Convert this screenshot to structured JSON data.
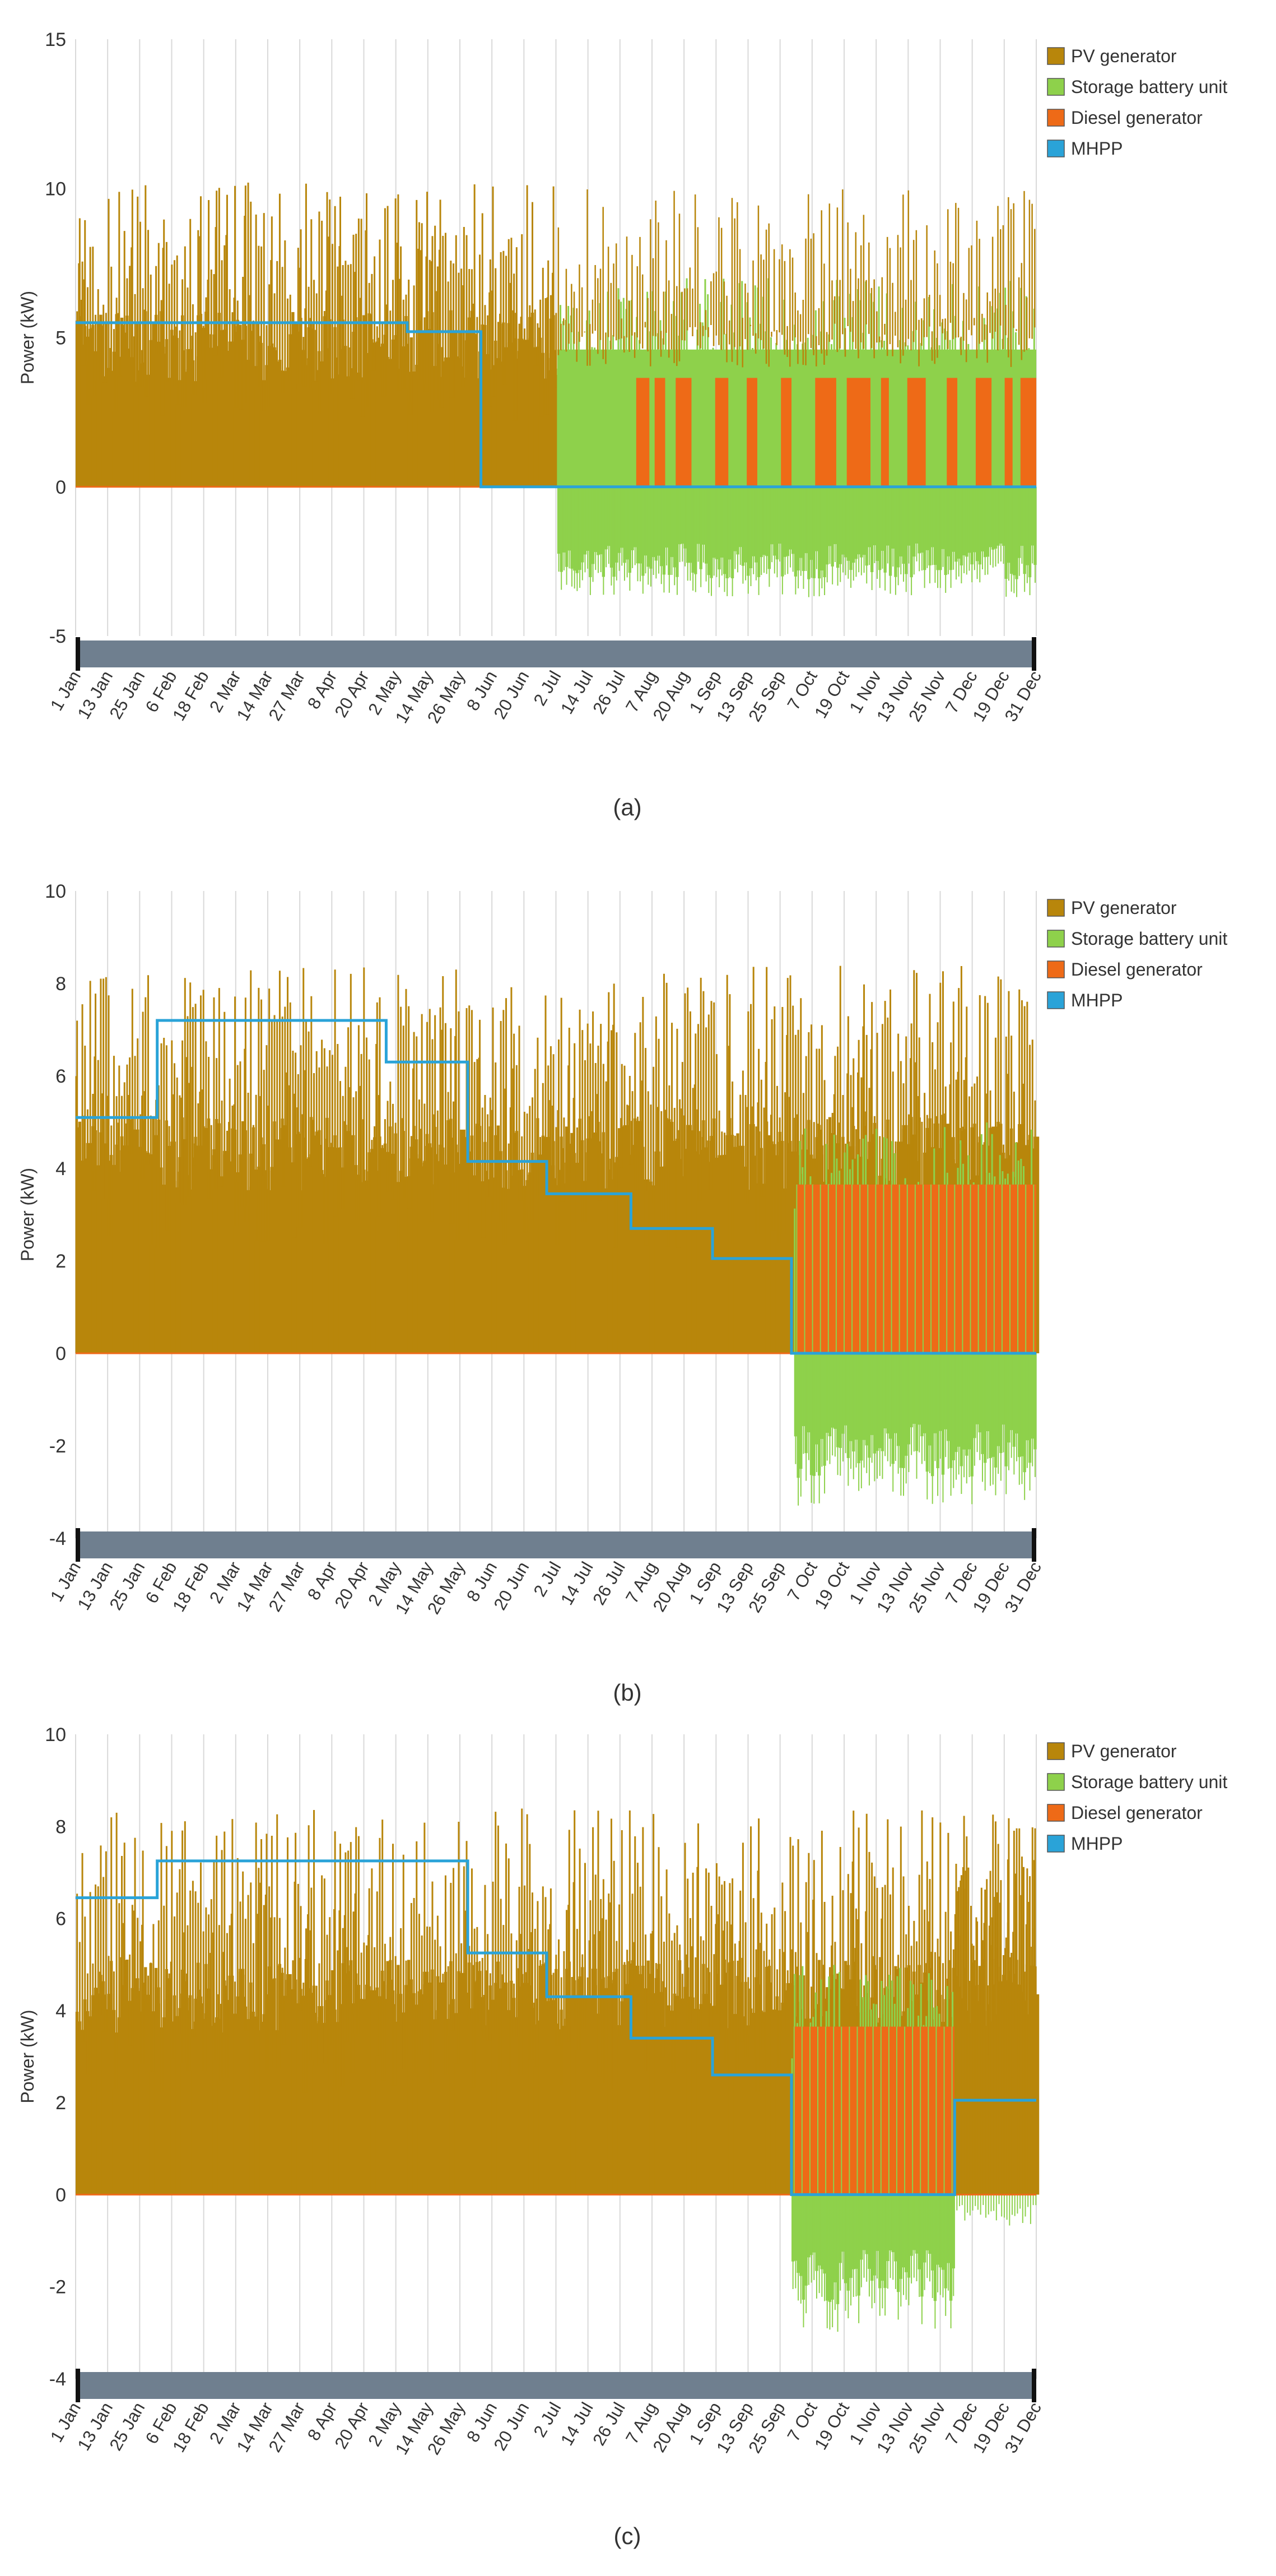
{
  "colors": {
    "pv": "#b8860b",
    "battery": "#8ed14b",
    "diesel": "#ee6a17",
    "mhpp": "#2aa3d8",
    "grid": "#d9d9d9",
    "scrollbar": "#6f7f8f"
  },
  "months": [
    "1 Jan",
    "13 Jan",
    "25 Jan",
    "6 Feb",
    "18 Feb",
    "2 Mar",
    "14 Mar",
    "27 Mar",
    "8 Apr",
    "20 Apr",
    "2 May",
    "14 May",
    "26 May",
    "8 Jun",
    "20 Jun",
    "2 Jul",
    "14 Jul",
    "26 Jul",
    "7 Aug",
    "20 Aug",
    "1 Sep",
    "13 Sep",
    "25 Sep",
    "7 Oct",
    "19 Oct",
    "1 Nov",
    "13 Nov",
    "25 Nov",
    "7 Dec",
    "19 Dec",
    "31 Dec"
  ],
  "chart_data": [
    {
      "type": "area",
      "caption": "(a)",
      "ylabel": "Power (kW)",
      "xlabel": "",
      "ylim": [
        -5,
        15
      ],
      "yticks": [
        "15",
        "10",
        "5",
        "0",
        "-5"
      ],
      "xticks": [
        "1 Jan",
        "13 Jan",
        "25 Jan",
        "6 Feb",
        "18 Feb",
        "2 Mar",
        "14 Mar",
        "27 Mar",
        "8 Apr",
        "20 Apr",
        "2 May",
        "14 May",
        "26 May",
        "8 Jun",
        "20 Jun",
        "2 Jul",
        "14 Jul",
        "26 Jul",
        "7 Aug",
        "20 Aug",
        "1 Sep",
        "13 Sep",
        "25 Sep",
        "7 Oct",
        "19 Oct",
        "1 Nov",
        "13 Nov",
        "25 Nov",
        "7 Dec",
        "19 Dec",
        "31 Dec"
      ],
      "legend": [
        "PV generator",
        "Storage battery unit",
        "Diesel generator",
        "MHPP"
      ],
      "series": [
        {
          "name": "PV generator",
          "day_start": 0,
          "day_end": 183,
          "daily_peak_range": [
            5.0,
            10.2
          ],
          "baseline_range": [
            1.0,
            2.5
          ]
        },
        {
          "name": "Storage battery unit",
          "day_start": 183,
          "day_end": 365,
          "charge_range": [
            -3.7,
            -1.0
          ],
          "discharge_max": 7.0
        },
        {
          "name": "Diesel generator",
          "value": 3.65,
          "day_start": 183,
          "day_end": 365
        },
        {
          "name": "MHPP",
          "steps": [
            [
              0,
              5.5
            ],
            [
              126,
              5.2
            ],
            [
              153,
              5.2
            ],
            [
              154,
              0.0
            ],
            [
              365,
              0.0
            ]
          ]
        }
      ]
    },
    {
      "type": "area",
      "caption": "(b)",
      "ylabel": "Power (kW)",
      "xlabel": "",
      "ylim": [
        -4,
        10
      ],
      "yticks": [
        "10",
        "8",
        "6",
        "4",
        "2",
        "0",
        "-2",
        "-4"
      ],
      "xticks": [
        "1 Jan",
        "13 Jan",
        "25 Jan",
        "6 Feb",
        "18 Feb",
        "2 Mar",
        "14 Mar",
        "27 Mar",
        "8 Apr",
        "20 Apr",
        "2 May",
        "14 May",
        "26 May",
        "8 Jun",
        "20 Jun",
        "2 Jul",
        "14 Jul",
        "26 Jul",
        "7 Aug",
        "20 Aug",
        "1 Sep",
        "13 Sep",
        "25 Sep",
        "7 Oct",
        "19 Oct",
        "1 Nov",
        "13 Nov",
        "25 Nov",
        "7 Dec",
        "19 Dec",
        "31 Dec"
      ],
      "legend": [
        "PV generator",
        "Storage battery unit",
        "Diesel generator",
        "MHPP"
      ],
      "series": [
        {
          "name": "PV generator",
          "day_start": 0,
          "day_end": 365,
          "daily_peak_range": [
            4.5,
            8.4
          ],
          "baseline_range": [
            1.0,
            2.0
          ]
        },
        {
          "name": "Storage battery unit",
          "day_start": 273,
          "day_end": 365,
          "charge_range": [
            -3.3,
            -1.0
          ],
          "discharge_max": 5.0
        },
        {
          "name": "Diesel generator",
          "value": 3.65,
          "day_start": 273,
          "day_end": 365
        },
        {
          "name": "MHPP",
          "steps": [
            [
              0,
              5.1
            ],
            [
              31,
              7.2
            ],
            [
              118,
              6.3
            ],
            [
              149,
              4.15
            ],
            [
              179,
              3.45
            ],
            [
              211,
              2.7
            ],
            [
              242,
              2.05
            ],
            [
              272,
              0.0
            ],
            [
              365,
              0.0
            ]
          ]
        }
      ]
    },
    {
      "type": "area",
      "caption": "(c)",
      "ylabel": "Power (kW)",
      "xlabel": "",
      "ylim": [
        -4,
        10
      ],
      "yticks": [
        "10",
        "8",
        "6",
        "4",
        "2",
        "0",
        "-2",
        "-4"
      ],
      "xticks": [
        "1 Jan",
        "13 Jan",
        "25 Jan",
        "6 Feb",
        "18 Feb",
        "2 Mar",
        "14 Mar",
        "27 Mar",
        "8 Apr",
        "20 Apr",
        "2 May",
        "14 May",
        "26 May",
        "8 Jun",
        "20 Jun",
        "2 Jul",
        "14 Jul",
        "26 Jul",
        "7 Aug",
        "20 Aug",
        "1 Sep",
        "13 Sep",
        "25 Sep",
        "7 Oct",
        "19 Oct",
        "1 Nov",
        "13 Nov",
        "25 Nov",
        "7 Dec",
        "19 Dec",
        "31 Dec"
      ],
      "legend": [
        "PV generator",
        "Storage battery unit",
        "Diesel generator",
        "MHPP"
      ],
      "series": [
        {
          "name": "PV generator",
          "day_start": 0,
          "day_end": 365,
          "daily_peak_range": [
            4.5,
            8.4
          ],
          "baseline_range": [
            1.0,
            2.0
          ]
        },
        {
          "name": "Storage battery unit",
          "day_start": 272,
          "day_end": 334,
          "charge_range": [
            -3.0,
            -1.0
          ],
          "discharge_max": 5.0
        },
        {
          "name": "Diesel generator",
          "value": 3.65,
          "day_start": 272,
          "day_end": 334
        },
        {
          "name": "MHPP",
          "steps": [
            [
              0,
              6.45
            ],
            [
              31,
              7.25
            ],
            [
              149,
              5.25
            ],
            [
              179,
              4.3
            ],
            [
              211,
              3.4
            ],
            [
              242,
              2.6
            ],
            [
              272,
              0.0
            ],
            [
              334,
              2.05
            ],
            [
              365,
              2.05
            ]
          ]
        }
      ]
    }
  ]
}
